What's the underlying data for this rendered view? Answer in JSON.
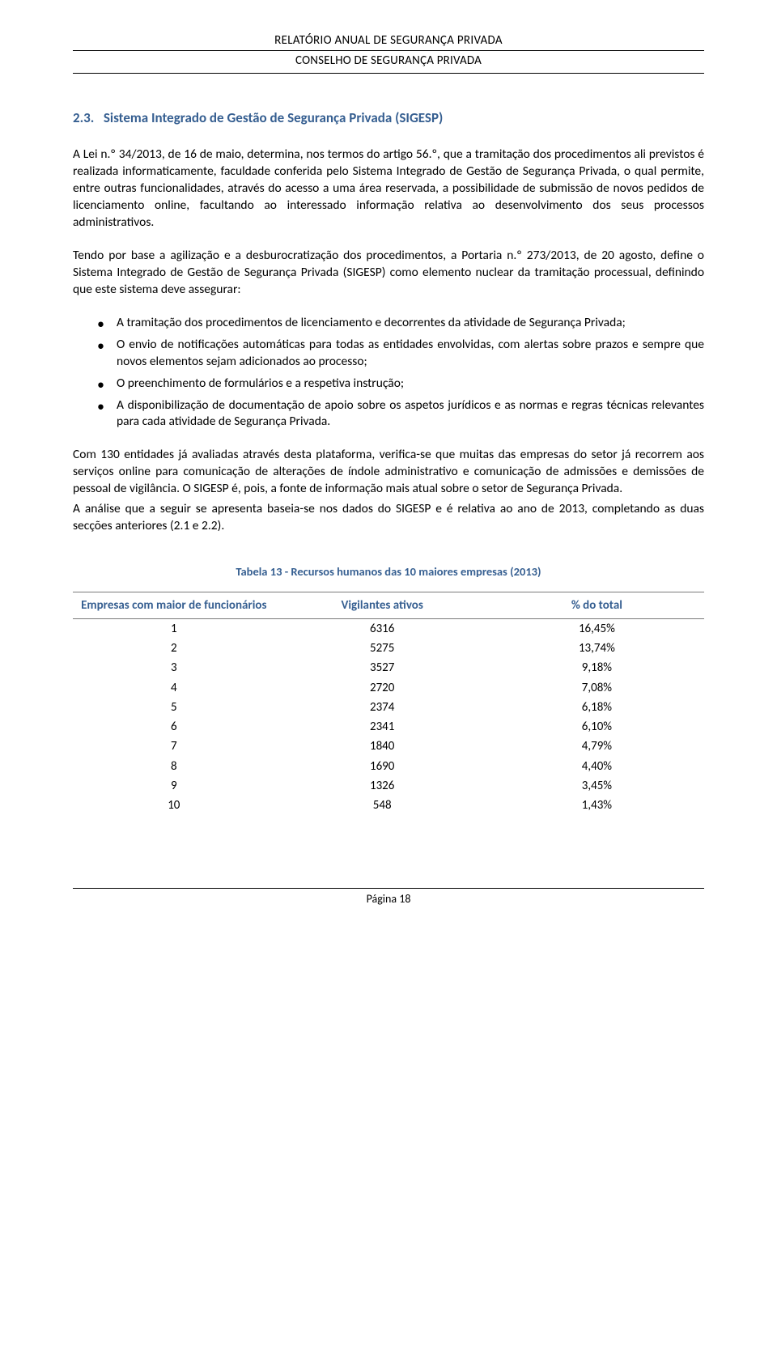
{
  "header": {
    "line1": "RELATÓRIO ANUAL DE SEGURANÇA PRIVADA",
    "line2": "CONSELHO DE SEGURANÇA PRIVADA"
  },
  "section": {
    "number": "2.3.",
    "title": "Sistema Integrado de Gestão de Segurança Privada (SIGESP)"
  },
  "paragraphs": {
    "p1": "A Lei n.º 34/2013, de 16 de maio, determina, nos termos do artigo 56.º, que a tramitação dos procedimentos ali previstos é realizada informaticamente, faculdade conferida pelo Sistema Integrado de Gestão de Segurança Privada, o qual permite, entre outras funcionalidades, através do acesso a uma área reservada, a possibilidade de submissão de novos pedidos de licenciamento online, facultando ao interessado informação relativa ao desenvolvimento dos seus processos administrativos.",
    "p2": "Tendo por base a agilização e a desburocratização dos procedimentos, a Portaria n.º 273/2013, de 20 agosto, define o Sistema Integrado de Gestão de Segurança Privada (SIGESP) como elemento nuclear da tramitação processual, definindo que este sistema deve assegurar:",
    "p3a": "Com 130 entidades já avaliadas através desta plataforma, verifica-se que muitas das empresas do setor já recorrem aos serviços online para comunicação de alterações de índole administrativo e comunicação de admissões e demissões de pessoal de vigilância. O SIGESP é, pois, a fonte de informação mais atual sobre o setor de Segurança Privada.",
    "p3b": "A análise que a seguir se apresenta baseia-se nos dados do SIGESP e é relativa ao ano de 2013, completando as duas secções anteriores (2.1 e 2.2)."
  },
  "bullets": [
    "A tramitação dos procedimentos de licenciamento e decorrentes da atividade de Segurança Privada;",
    "O envio de notificações automáticas para todas as entidades envolvidas, com alertas sobre prazos e sempre que novos elementos sejam adicionados ao processo;",
    "O preenchimento de formulários e a respetiva instrução;",
    "A disponibilização de documentação de apoio sobre os aspetos jurídicos e as normas e regras técnicas relevantes para cada atividade de Segurança Privada."
  ],
  "table": {
    "caption": "Tabela 13 - Recursos humanos das 10 maiores empresas (2013)",
    "columns": [
      "Empresas com maior de funcionários",
      "Vigilantes ativos",
      "% do total"
    ],
    "rows": [
      [
        "1",
        "6316",
        "16,45%"
      ],
      [
        "2",
        "5275",
        "13,74%"
      ],
      [
        "3",
        "3527",
        "9,18%"
      ],
      [
        "4",
        "2720",
        "7,08%"
      ],
      [
        "5",
        "2374",
        "6,18%"
      ],
      [
        "6",
        "2341",
        "6,10%"
      ],
      [
        "7",
        "1840",
        "4,79%"
      ],
      [
        "8",
        "1690",
        "4,40%"
      ],
      [
        "9",
        "1326",
        "3,45%"
      ],
      [
        "10",
        "548",
        "1,43%"
      ]
    ],
    "header_color": "#365f91",
    "border_color": "#7a7a7a"
  },
  "footer": {
    "page_label": "Página 18"
  }
}
